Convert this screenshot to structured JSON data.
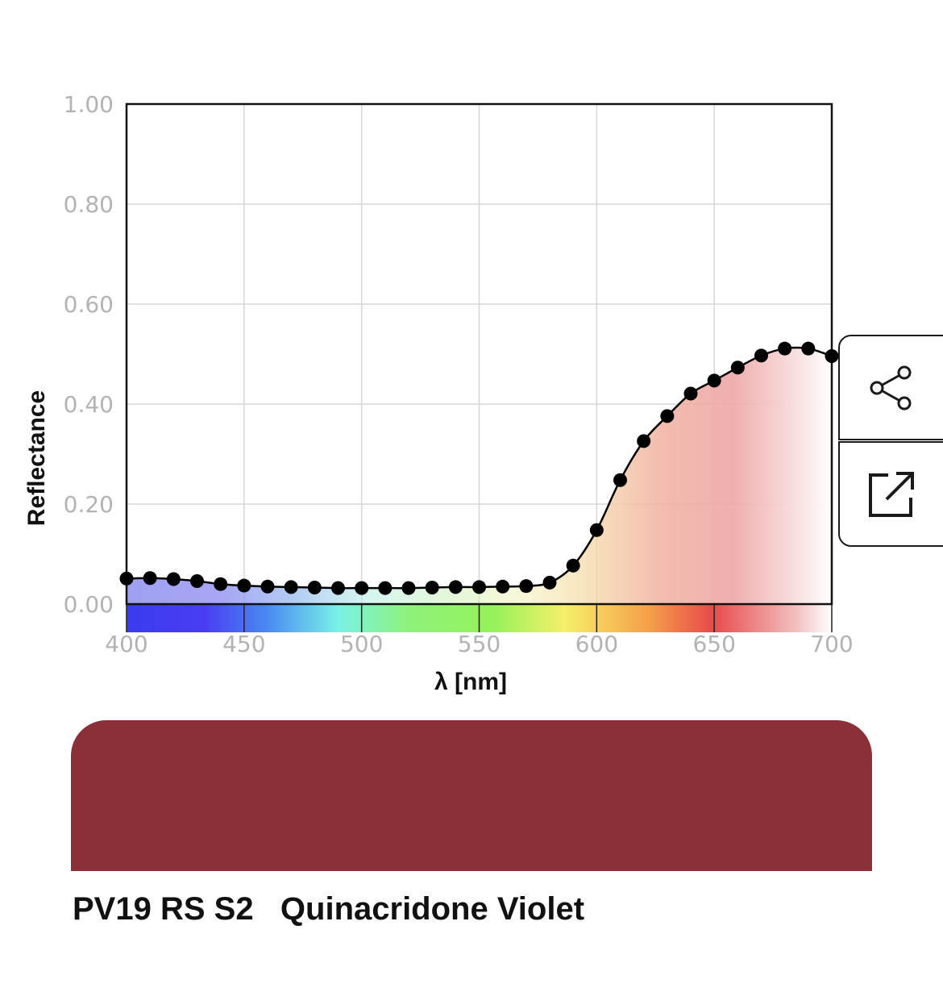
{
  "chart_data": {
    "type": "line",
    "xlabel": "λ [nm]",
    "ylabel": "Reflectance",
    "xlim": [
      400,
      700
    ],
    "ylim": [
      0,
      1
    ],
    "x_ticks": [
      "400",
      "450",
      "500",
      "550",
      "600",
      "650",
      "700"
    ],
    "y_ticks": [
      "0.00",
      "0.20",
      "0.40",
      "0.60",
      "0.80",
      "1.00"
    ],
    "grid": true,
    "legend": "none",
    "x": [
      400,
      410,
      420,
      430,
      440,
      450,
      460,
      470,
      480,
      490,
      500,
      510,
      520,
      530,
      540,
      550,
      560,
      570,
      580,
      590,
      600,
      610,
      620,
      630,
      640,
      650,
      660,
      670,
      680,
      690,
      700
    ],
    "y": [
      0.051,
      0.052,
      0.05,
      0.046,
      0.04,
      0.037,
      0.035,
      0.034,
      0.033,
      0.032,
      0.032,
      0.032,
      0.032,
      0.033,
      0.034,
      0.034,
      0.035,
      0.036,
      0.043,
      0.077,
      0.148,
      0.248,
      0.326,
      0.376,
      0.421,
      0.447,
      0.473,
      0.497,
      0.511,
      0.511,
      0.496
    ],
    "line_color": "#000000",
    "spectrum_colors": [
      "#3b3bf0",
      "#4a3df2",
      "#4a8af2",
      "#7af2e6",
      "#8ef27a",
      "#96f25a",
      "#f5f06a",
      "#f5a04a",
      "#e55a4a",
      "#e84a4a",
      "#f2a0a0",
      "#ffffff"
    ]
  },
  "sample": {
    "swatch_color": "#8c2f39",
    "code": "PV19 RS S2",
    "name": "Quinacridone Violet",
    "title": "PV19 RS S2   Quinacridone Violet"
  },
  "actions": {
    "share_icon": "share-icon",
    "open_icon": "external-link-icon"
  }
}
